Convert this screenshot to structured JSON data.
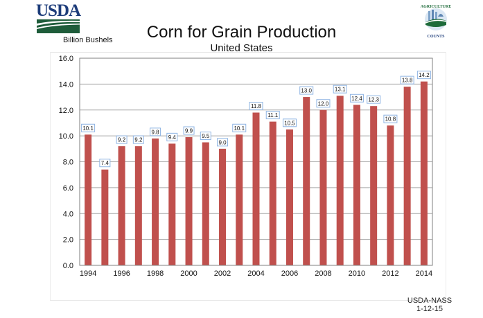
{
  "header": {
    "org_logo_text": "USDA",
    "badge_logo_top_text": "AGRICULTURE",
    "badge_logo_bottom_text": "COUNTS"
  },
  "footer": {
    "source_line1": "USDA-NASS",
    "source_line2": "1-12-15"
  },
  "colors": {
    "bar": "#C0504D",
    "label_border": "#8EB4E3",
    "usda_blue": "#1D3C7A",
    "usda_green": "#1E5C3A"
  },
  "chart_data": {
    "type": "bar",
    "title": "Corn for Grain Production",
    "subtitle": "United States",
    "xlabel": "",
    "ylabel": "Billion Bushels",
    "categories": [
      "1994",
      "1995",
      "1996",
      "1997",
      "1998",
      "1999",
      "2000",
      "2001",
      "2002",
      "2003",
      "2004",
      "2005",
      "2006",
      "2007",
      "2008",
      "2009",
      "2010",
      "2011",
      "2012",
      "2013",
      "2014"
    ],
    "x_tick_labels": [
      "1994",
      "1996",
      "1998",
      "2000",
      "2002",
      "2004",
      "2006",
      "2008",
      "2010",
      "2012",
      "2014"
    ],
    "values": [
      10.1,
      7.4,
      9.2,
      9.2,
      9.8,
      9.4,
      9.9,
      9.5,
      9.0,
      10.1,
      11.8,
      11.1,
      10.5,
      13.0,
      12.0,
      13.1,
      12.4,
      12.3,
      10.8,
      13.8,
      14.2
    ],
    "data_labels": [
      "10.1",
      "7.4",
      "9.2",
      "9.2",
      "9.8",
      "9.4",
      "9.9",
      "9.5",
      "9.0",
      "10.1",
      "11.8",
      "11.1",
      "10.5",
      "13.0",
      "12.0",
      "13.1",
      "12.4",
      "12.3",
      "10.8",
      "13.8",
      "14.2"
    ],
    "y_ticks": [
      "0.0",
      "2.0",
      "4.0",
      "6.0",
      "8.0",
      "10.0",
      "12.0",
      "14.0",
      "16.0"
    ],
    "ylim": [
      0,
      16
    ],
    "grid": true,
    "legend": "none"
  }
}
